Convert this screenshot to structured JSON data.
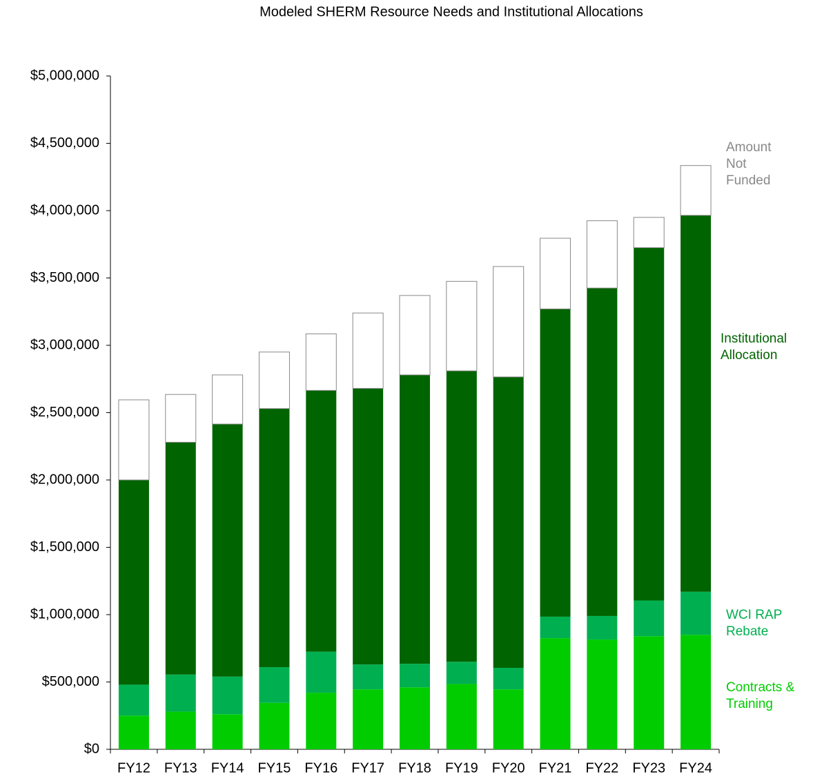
{
  "chart_data": {
    "type": "stacked_bar",
    "title": "Modeled SHERM Resource Needs and Institutional Allocations",
    "categories": [
      "FY12",
      "FY13",
      "FY14",
      "FY15",
      "FY16",
      "FY17",
      "FY18",
      "FY19",
      "FY20",
      "FY21",
      "FY22",
      "FY23",
      "FY24"
    ],
    "series": [
      {
        "name": "Contracts & Training",
        "color": "#00cc00",
        "values": [
          250000,
          280000,
          260000,
          345000,
          420000,
          445000,
          460000,
          485000,
          445000,
          825000,
          815000,
          840000,
          850000
        ]
      },
      {
        "name": "WCI RAP Rebate",
        "color": "#00b050",
        "values": [
          230000,
          275000,
          280000,
          265000,
          305000,
          185000,
          175000,
          165000,
          160000,
          160000,
          175000,
          265000,
          320000
        ]
      },
      {
        "name": "Institutional Allocation",
        "color": "#006400",
        "values": [
          1520000,
          1725000,
          1875000,
          1920000,
          1940000,
          2050000,
          2145000,
          2160000,
          2160000,
          2285000,
          2435000,
          2620000,
          2795000
        ]
      },
      {
        "name": "Amount Not Funded",
        "color": "#ffffff",
        "values": [
          595000,
          355000,
          365000,
          420000,
          420000,
          560000,
          590000,
          665000,
          820000,
          525000,
          500000,
          225000,
          370000
        ]
      }
    ],
    "ylim": [
      0,
      5000000
    ],
    "yticks": [
      {
        "value": 0,
        "label": "$0"
      },
      {
        "value": 500000,
        "label": "$500,000"
      },
      {
        "value": 1000000,
        "label": "$1,000,000"
      },
      {
        "value": 1500000,
        "label": "$1,500,000"
      },
      {
        "value": 2000000,
        "label": "$2,000,000"
      },
      {
        "value": 2500000,
        "label": "$2,500,000"
      },
      {
        "value": 3000000,
        "label": "$3,000,000"
      },
      {
        "value": 3500000,
        "label": "$3,500,000"
      },
      {
        "value": 4000000,
        "label": "$4,000,000"
      },
      {
        "value": 4500000,
        "label": "$4,500,000"
      },
      {
        "value": 5000000,
        "label": "$5,000,000"
      }
    ]
  }
}
